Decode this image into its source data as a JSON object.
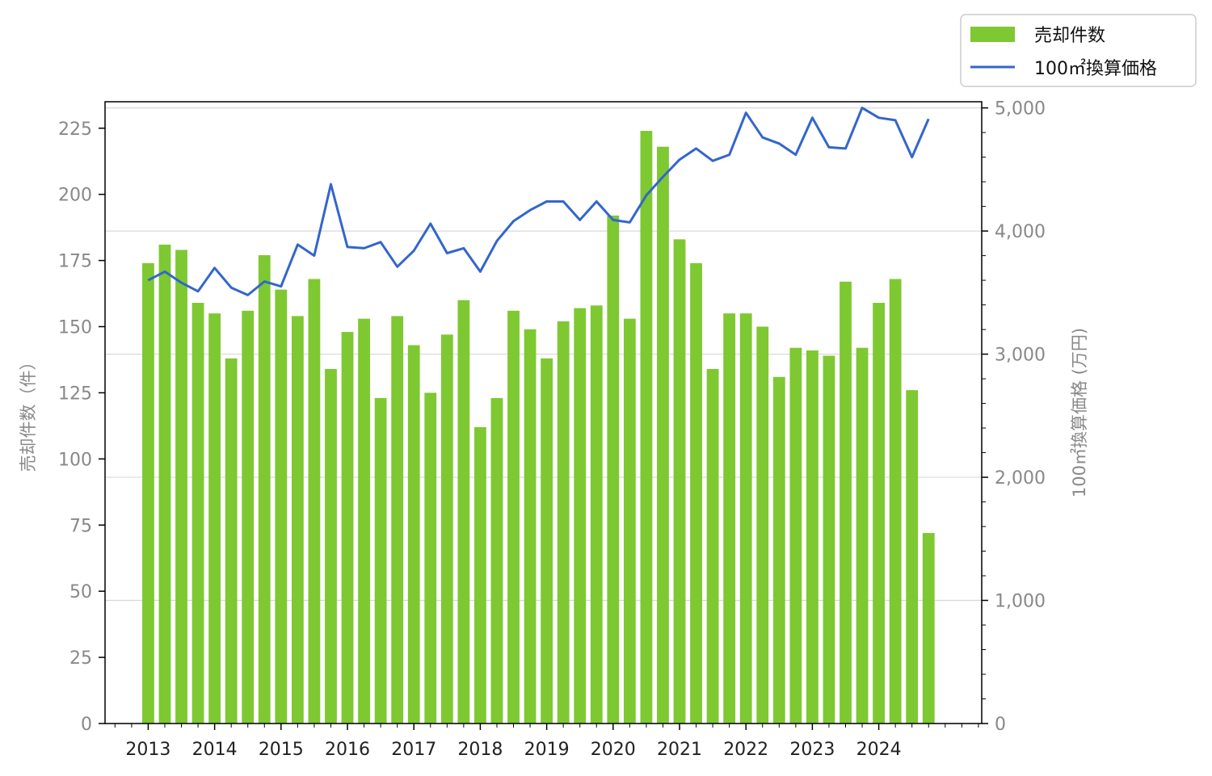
{
  "chart_data": {
    "type": "bar+line",
    "legend": {
      "placement": "top-right-outside",
      "entries": [
        "売却件数",
        "100㎡換算価格"
      ]
    },
    "colors": {
      "bars": "#7ec832",
      "line": "#3366cc",
      "grid": "#d8d8d8",
      "axis": "#000000",
      "label": "#888888"
    },
    "x": {
      "tick_labels": [
        "2013",
        "2014",
        "2015",
        "2016",
        "2017",
        "2018",
        "2019",
        "2020",
        "2021",
        "2022",
        "2023",
        "2024"
      ],
      "periods_per_tick": 4,
      "range_periods": [
        -2.6,
        50.2
      ]
    },
    "y_left": {
      "label": "売却件数（件）",
      "range": [
        0,
        235
      ],
      "ticks": [
        0,
        25,
        50,
        75,
        100,
        125,
        150,
        175,
        200,
        225
      ],
      "tick_labels": [
        "0",
        "25",
        "50",
        "75",
        "100",
        "125",
        "150",
        "175",
        "200",
        "225"
      ]
    },
    "y_right": {
      "label": "100㎡換算価格 (万円)",
      "range": [
        0,
        5050
      ],
      "ticks": [
        0,
        1000,
        2000,
        3000,
        4000,
        5000
      ],
      "tick_labels": [
        "0",
        "1,000",
        "2,000",
        "3,000",
        "4,000",
        "5,000"
      ],
      "grid": true
    },
    "series": [
      {
        "name": "売却件数",
        "type": "bar",
        "axis": "left",
        "values": [
          174,
          181,
          179,
          159,
          155,
          138,
          156,
          177,
          164,
          154,
          168,
          134,
          148,
          153,
          123,
          154,
          143,
          125,
          147,
          160,
          112,
          123,
          156,
          149,
          138,
          152,
          157,
          158,
          192,
          153,
          224,
          218,
          183,
          174,
          134,
          155,
          155,
          150,
          131,
          142,
          141,
          139,
          167,
          142,
          159,
          168,
          126,
          72
        ]
      },
      {
        "name": "100㎡換算価格",
        "type": "line",
        "axis": "right",
        "values": [
          3600,
          3670,
          3580,
          3510,
          3700,
          3540,
          3480,
          3590,
          3550,
          3890,
          3800,
          4380,
          3870,
          3860,
          3910,
          3710,
          3840,
          4060,
          3820,
          3860,
          3670,
          3920,
          4080,
          4170,
          4240,
          4240,
          4090,
          4240,
          4090,
          4070,
          4290,
          4440,
          4580,
          4670,
          4570,
          4620,
          4960,
          4760,
          4710,
          4620,
          4920,
          4680,
          4670,
          5000,
          4920,
          4900,
          4600,
          4910
        ]
      }
    ]
  }
}
